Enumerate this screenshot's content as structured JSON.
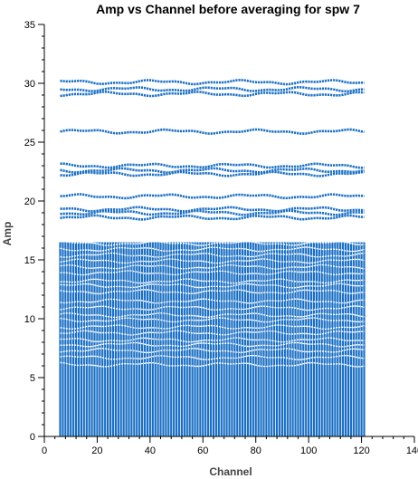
{
  "chart_data": {
    "type": "scatter",
    "title": "Amp vs Channel before averaging for spw 7",
    "xlabel": "Channel",
    "ylabel": "Amp",
    "xlim": [
      0,
      140
    ],
    "ylim": [
      0,
      35
    ],
    "x_ticks": [
      0,
      20,
      40,
      60,
      80,
      100,
      120,
      140
    ],
    "y_ticks": [
      0,
      5,
      10,
      15,
      20,
      25,
      30,
      35
    ],
    "grid": false,
    "legend": "none",
    "point_color": "#1a6fc4",
    "channel_range": [
      6,
      121
    ],
    "dense_region": {
      "y_min": 0,
      "y_max": 16.5
    },
    "series": [
      {
        "y": 30.1
      },
      {
        "y": 29.5
      },
      {
        "y": 29.1
      },
      {
        "y": 25.9
      },
      {
        "y": 23.0
      },
      {
        "y": 22.6
      },
      {
        "y": 22.3
      },
      {
        "y": 20.4
      },
      {
        "y": 19.3
      },
      {
        "y": 19.0
      },
      {
        "y": 18.6
      },
      {
        "y": 16.4
      },
      {
        "y": 15.9
      },
      {
        "y": 15.4
      },
      {
        "y": 14.9
      },
      {
        "y": 14.4
      },
      {
        "y": 13.9
      },
      {
        "y": 13.2
      },
      {
        "y": 12.8
      },
      {
        "y": 12.3
      },
      {
        "y": 11.5
      },
      {
        "y": 10.9
      },
      {
        "y": 10.3
      },
      {
        "y": 9.9
      },
      {
        "y": 9.3
      },
      {
        "y": 8.8
      },
      {
        "y": 8.2
      },
      {
        "y": 7.8
      },
      {
        "y": 7.3
      },
      {
        "y": 6.7
      },
      {
        "y": 6.1
      }
    ]
  }
}
